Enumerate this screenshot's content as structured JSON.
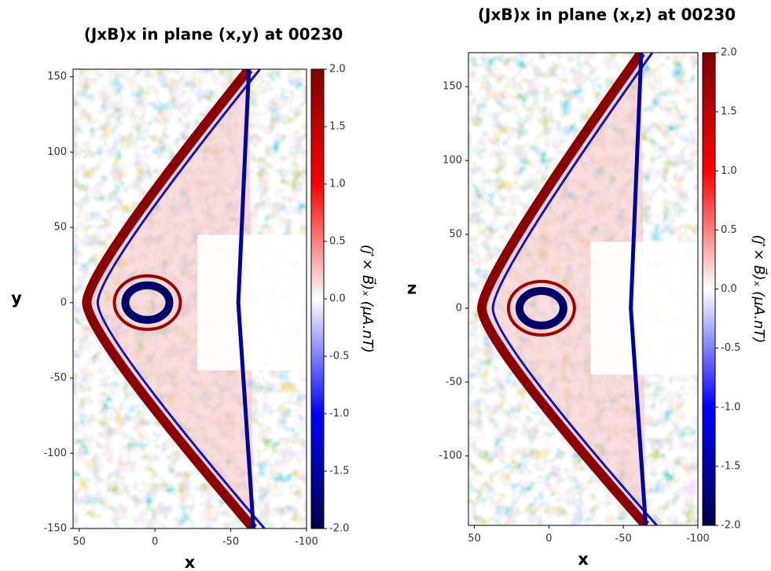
{
  "chart_data": [
    {
      "type": "heatmap",
      "title": "(JxB)x in plane (x,y) at 00230",
      "x_label": "x",
      "y_label": "y",
      "xlim": [
        54,
        -100
      ],
      "ylim": [
        -150,
        155
      ],
      "xticks": [
        50,
        0,
        -50,
        -100
      ],
      "yticks": [
        -150,
        -100,
        -50,
        0,
        50,
        100,
        150
      ],
      "colorbar": {
        "label": "(j⃗ × B⃗)ₓ (μA.nT)",
        "colormap": "seismic",
        "lim": [
          -2,
          2
        ],
        "ticks": [
          {
            "value": -2,
            "label": "-2.0"
          },
          -1.5,
          {
            "value": -1,
            "label": "-1.0"
          },
          -0.5,
          {
            "value": 0,
            "label": "0.0"
          },
          0.5,
          {
            "value": 1,
            "label": "1.0"
          },
          1.5,
          {
            "value": 2,
            "label": "2.0"
          }
        ]
      }
    },
    {
      "type": "heatmap",
      "title": "(JxB)x in plane (x,z) at 00230",
      "x_label": "x",
      "y_label": "z",
      "xlim": [
        54,
        -100
      ],
      "ylim": [
        -147,
        173
      ],
      "xticks": [
        50,
        0,
        -50,
        -100
      ],
      "yticks": [
        -100,
        -50,
        0,
        50,
        100,
        150
      ],
      "colorbar": {
        "label": "(j⃗ × B⃗)ₓ (μA.nT)",
        "colormap": "seismic",
        "lim": [
          -2,
          2
        ],
        "ticks": [
          {
            "value": -2,
            "label": "-2.0"
          },
          -1.5,
          {
            "value": -1,
            "label": "-1.0"
          },
          -0.5,
          {
            "value": 0,
            "label": "0.0"
          },
          0.5,
          {
            "value": 1,
            "label": "1.0"
          },
          1.5,
          {
            "value": 2,
            "label": "2.0"
          }
        ]
      }
    }
  ]
}
